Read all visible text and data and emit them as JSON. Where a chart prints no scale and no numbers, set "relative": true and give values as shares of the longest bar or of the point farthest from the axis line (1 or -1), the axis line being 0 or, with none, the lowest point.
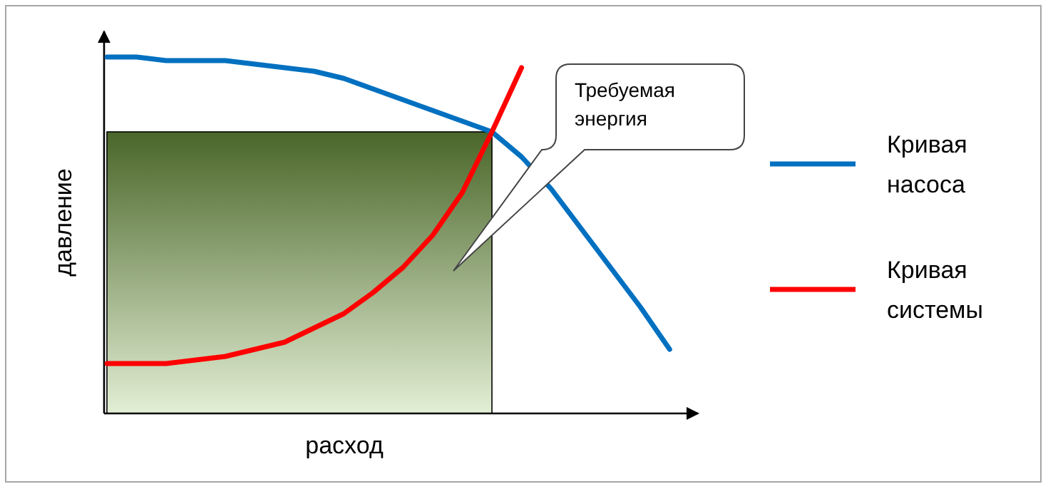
{
  "chart_data": {
    "type": "line",
    "relative": true,
    "xlabel": "расход",
    "ylabel": "давление",
    "legend": "right",
    "categories": [
      null,
      null,
      null,
      null,
      null,
      null,
      null,
      null,
      null,
      null,
      null,
      null,
      null,
      null,
      null,
      null,
      null,
      null,
      null,
      null
    ],
    "series": [
      {
        "name": "Кривая насоса",
        "color": "#0070c0",
        "values": [
          1,
          1,
          0.99,
          0.99,
          0.99,
          0.98,
          0.97,
          0.96,
          0.94,
          0.91,
          0.88,
          0.85,
          0.82,
          0.79,
          0.72,
          0.63,
          0.52,
          0.41,
          0.3,
          0.18
        ]
      },
      {
        "name": "Кривая системы",
        "color": "#ff0000",
        "values": [
          0.14,
          0.14,
          0.14,
          0.15,
          0.16,
          0.18,
          0.2,
          0.24,
          0.28,
          0.34,
          0.41,
          0.5,
          0.62,
          0.79,
          0.97,
          null,
          null,
          null,
          null,
          null
        ]
      }
    ],
    "annotations": [
      "Требуемая энергия"
    ]
  }
}
